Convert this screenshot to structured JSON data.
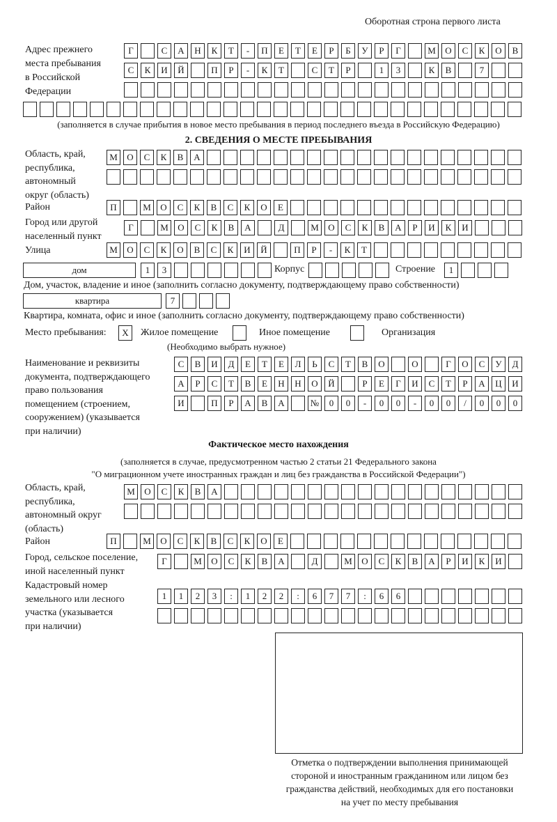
{
  "page_header": "Оборотная строна первого листа",
  "prev_address": {
    "label": "Адрес прежнего\nместа пребывания\nв Российской\nФедерации",
    "rows": [
      [
        "Г",
        "",
        "С",
        "А",
        "Н",
        "К",
        "Т",
        "-",
        "П",
        "Е",
        "Т",
        "Е",
        "Р",
        "Б",
        "У",
        "Р",
        "Г",
        "",
        "М",
        "О",
        "С",
        "К",
        "О",
        "В"
      ],
      [
        "С",
        "К",
        "И",
        "Й",
        "",
        "П",
        "Р",
        "-",
        "К",
        "Т",
        "",
        "С",
        "Т",
        "Р",
        "",
        "1",
        "3",
        "",
        "К",
        "В",
        "",
        "7",
        "",
        ""
      ],
      [
        "",
        "",
        "",
        "",
        "",
        "",
        "",
        "",
        "",
        "",
        "",
        "",
        "",
        "",
        "",
        "",
        "",
        "",
        "",
        "",
        "",
        "",
        "",
        ""
      ],
      [
        "",
        "",
        "",
        "",
        "",
        "",
        "",
        "",
        "",
        "",
        "",
        "",
        "",
        "",
        "",
        "",
        "",
        "",
        "",
        "",
        "",
        "",
        "",
        "",
        "",
        "",
        "",
        "",
        "",
        ""
      ]
    ],
    "note": "(заполняется в случае прибытия в новое место пребывания в период последнего въезда в Российскую Федерацию)"
  },
  "section2": {
    "title": "2. СВЕДЕНИЯ О МЕСТЕ ПРЕБЫВАНИЯ",
    "region_label": "Область, край,\nреспублика,\nавтономный\nокруг (область)",
    "region_rows": [
      [
        "М",
        "О",
        "С",
        "К",
        "В",
        "А",
        "",
        "",
        "",
        "",
        "",
        "",
        "",
        "",
        "",
        "",
        "",
        "",
        "",
        "",
        "",
        "",
        "",
        "",
        ""
      ],
      [
        "",
        "",
        "",
        "",
        "",
        "",
        "",
        "",
        "",
        "",
        "",
        "",
        "",
        "",
        "",
        "",
        "",
        "",
        "",
        "",
        "",
        "",
        "",
        "",
        ""
      ]
    ],
    "district_label": "Район",
    "district_row": [
      "П",
      "",
      "М",
      "О",
      "С",
      "К",
      "В",
      "С",
      "К",
      "О",
      "Е",
      "",
      "",
      "",
      "",
      "",
      "",
      "",
      "",
      "",
      "",
      "",
      "",
      "",
      ""
    ],
    "city_label": "Город или другой\nнаселенный пункт",
    "city_row": [
      "Г",
      "",
      "М",
      "О",
      "С",
      "К",
      "В",
      "А",
      "",
      "Д",
      "",
      "М",
      "О",
      "С",
      "К",
      "В",
      "А",
      "Р",
      "И",
      "К",
      "И",
      "",
      "",
      ""
    ],
    "street_label": "Улица",
    "street_row": [
      "М",
      "О",
      "С",
      "К",
      "О",
      "В",
      "С",
      "К",
      "И",
      "Й",
      "",
      "П",
      "Р",
      "-",
      "К",
      "Т",
      "",
      "",
      "",
      "",
      "",
      "",
      "",
      "",
      ""
    ],
    "house_type": "дом",
    "house_cells": [
      "1",
      "3",
      "",
      "",
      "",
      "",
      "",
      ""
    ],
    "korpus_label": "Корпус",
    "korpus_cells": [
      "",
      "",
      "",
      "",
      ""
    ],
    "stroenie_label": "Строение",
    "stroenie_cells": [
      "1",
      "",
      "",
      ""
    ],
    "house_note": "Дом, участок, владение и иное (заполнить согласно документу, подтверждающему право собственности)",
    "flat_type": "квартира",
    "flat_cells": [
      "7",
      "",
      "",
      ""
    ],
    "flat_note": "Квартира, комната, офис и иное (заполнить согласно документу, подтверждающему право собственности)",
    "stay_place_label": "Место пребывания:",
    "options": [
      {
        "label": "Жилое помещение",
        "mark": "X",
        "checked": true
      },
      {
        "label": "Иное помещение",
        "mark": "",
        "checked": false
      },
      {
        "label": "Организация",
        "mark": "",
        "checked": false
      }
    ],
    "choose_note": "(Необходимо выбрать нужное)",
    "doc_label": "Наименование и реквизиты\nдокумента, подтверждающего\nправо пользования\nпомещением (строением,\nсооружением) (указывается\nпри наличии)",
    "doc_rows": [
      [
        "С",
        "В",
        "И",
        "Д",
        "Е",
        "Т",
        "Е",
        "Л",
        "Ь",
        "С",
        "Т",
        "В",
        "О",
        "",
        "О",
        "",
        "Г",
        "О",
        "С",
        "У",
        "Д"
      ],
      [
        "А",
        "Р",
        "С",
        "Т",
        "В",
        "Е",
        "Н",
        "Н",
        "О",
        "Й",
        "",
        "Р",
        "Е",
        "Г",
        "И",
        "С",
        "Т",
        "Р",
        "А",
        "Ц",
        "И"
      ],
      [
        "И",
        "",
        "П",
        "Р",
        "А",
        "В",
        "А",
        "",
        "№",
        "0",
        "0",
        "-",
        "0",
        "0",
        "-",
        "0",
        "0",
        "/",
        "0",
        "0",
        "0"
      ]
    ]
  },
  "actual": {
    "title": "Фактическое место нахождения",
    "note1": "(заполняется в случае, предусмотренном частью 2 статьи 21 Федерального закона",
    "note2": "\"О миграционном учете иностранных граждан и лиц без гражданства в Российской Федерации\")",
    "region_label": "Область, край,\nреспублика,\nавтономный округ\n(область)",
    "region_rows": [
      [
        "М",
        "О",
        "С",
        "К",
        "В",
        "А",
        "",
        "",
        "",
        "",
        "",
        "",
        "",
        "",
        "",
        "",
        "",
        "",
        "",
        "",
        "",
        "",
        "",
        ""
      ],
      [
        "",
        "",
        "",
        "",
        "",
        "",
        "",
        "",
        "",
        "",
        "",
        "",
        "",
        "",
        "",
        "",
        "",
        "",
        "",
        "",
        "",
        "",
        "",
        ""
      ]
    ],
    "district_label": "Район",
    "district_row": [
      "П",
      "",
      "М",
      "О",
      "С",
      "К",
      "В",
      "С",
      "К",
      "О",
      "Е",
      "",
      "",
      "",
      "",
      "",
      "",
      "",
      "",
      "",
      "",
      "",
      "",
      "",
      ""
    ],
    "city_label": "Город, сельское поселение,\nиной населенный пункт",
    "city_row": [
      "Г",
      "",
      "М",
      "О",
      "С",
      "К",
      "В",
      "А",
      "",
      "Д",
      "",
      "М",
      "О",
      "С",
      "К",
      "В",
      "А",
      "Р",
      "И",
      "К",
      "И",
      ""
    ],
    "cadastral_label": "Кадастровый номер\nземельного или лесного\nучастка (указывается\nпри наличии)",
    "cadastral_rows": [
      [
        "1",
        "1",
        "2",
        "3",
        ":",
        "1",
        "2",
        "2",
        ":",
        "6",
        "7",
        "7",
        ":",
        "6",
        "6",
        "",
        "",
        "",
        "",
        "",
        "",
        ""
      ],
      [
        "",
        "",
        "",
        "",
        "",
        "",
        "",
        "",
        "",
        "",
        "",
        "",
        "",
        "",
        "",
        "",
        "",
        "",
        "",
        "",
        "",
        ""
      ]
    ]
  },
  "confirmation_caption": "Отметка о подтверждении выполнения принимающей\nстороной и иностранным гражданином или лицом без\nгражданства действий, необходимых для его постановки\nна учет по месту пребывания"
}
